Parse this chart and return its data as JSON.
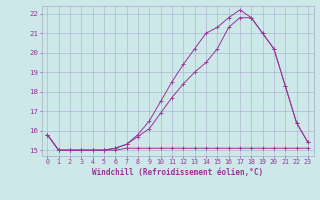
{
  "xlabel": "Windchill (Refroidissement éolien,°C)",
  "bg_color": "#cce8e8",
  "line_color": "#993399",
  "grid_color": "#aaaacc",
  "spine_color": "#aaaacc",
  "xlim": [
    -0.5,
    23.5
  ],
  "ylim": [
    14.7,
    22.4
  ],
  "xticks": [
    0,
    1,
    2,
    3,
    4,
    5,
    6,
    7,
    8,
    9,
    10,
    11,
    12,
    13,
    14,
    15,
    16,
    17,
    18,
    19,
    20,
    21,
    22,
    23
  ],
  "yticks": [
    15,
    16,
    17,
    18,
    19,
    20,
    21,
    22
  ],
  "line1_x": [
    0,
    1,
    2,
    3,
    4,
    5,
    6,
    7,
    8,
    9,
    10,
    11,
    12,
    13,
    14,
    15,
    16,
    17,
    18,
    19,
    20,
    21,
    22,
    23
  ],
  "line1_y": [
    15.8,
    15.0,
    15.0,
    15.0,
    15.0,
    15.0,
    15.0,
    15.1,
    15.1,
    15.1,
    15.1,
    15.1,
    15.1,
    15.1,
    15.1,
    15.1,
    15.1,
    15.1,
    15.1,
    15.1,
    15.1,
    15.1,
    15.1,
    15.1
  ],
  "line2_x": [
    0,
    1,
    2,
    3,
    4,
    5,
    6,
    7,
    8,
    9,
    10,
    11,
    12,
    13,
    14,
    15,
    16,
    17,
    18,
    19,
    20,
    21,
    22,
    23
  ],
  "line2_y": [
    15.8,
    15.0,
    15.0,
    15.0,
    15.0,
    15.0,
    15.1,
    15.3,
    15.7,
    16.1,
    16.9,
    17.7,
    18.4,
    19.0,
    19.5,
    20.2,
    21.3,
    21.8,
    21.8,
    21.0,
    20.2,
    18.3,
    16.4,
    15.4
  ],
  "line3_x": [
    0,
    1,
    2,
    3,
    4,
    5,
    6,
    7,
    8,
    9,
    10,
    11,
    12,
    13,
    14,
    15,
    16,
    17,
    18,
    19,
    20,
    21,
    22,
    23
  ],
  "line3_y": [
    15.8,
    15.0,
    15.0,
    15.0,
    15.0,
    15.0,
    15.1,
    15.3,
    15.8,
    16.5,
    17.5,
    18.5,
    19.4,
    20.2,
    21.0,
    21.3,
    21.8,
    22.2,
    21.8,
    21.0,
    20.2,
    18.3,
    16.4,
    15.4
  ],
  "xlabel_fontsize": 5.5,
  "tick_fontsize": 4.8,
  "marker_size": 2.5,
  "linewidth": 0.7
}
